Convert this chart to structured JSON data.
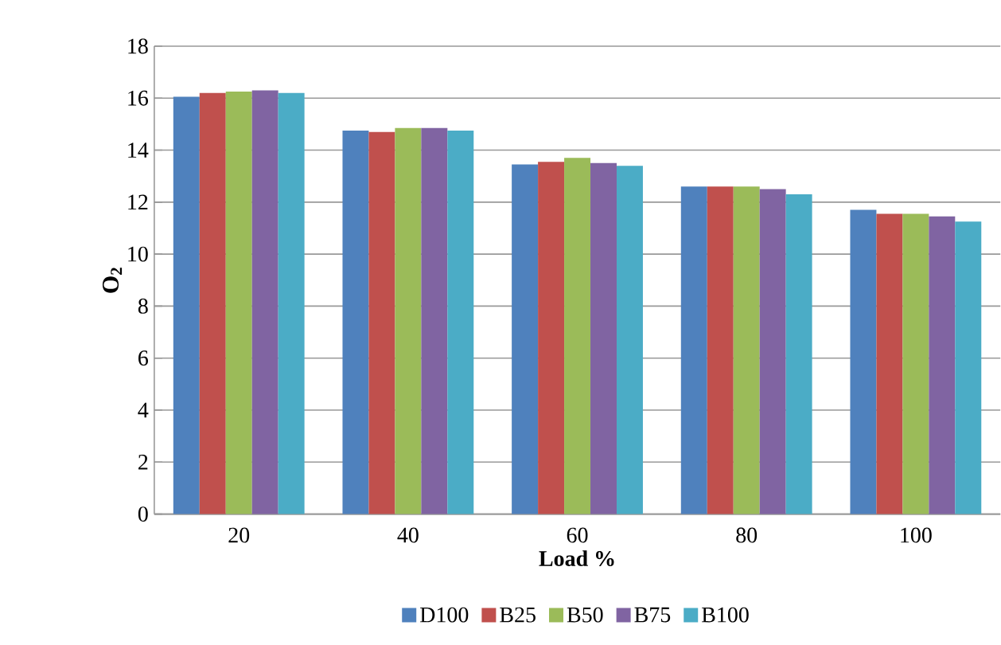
{
  "chart_data": {
    "type": "bar",
    "xlabel": "Load %",
    "ylabel": "O$_{2}$",
    "categories": [
      "20",
      "40",
      "60",
      "80",
      "100"
    ],
    "series": [
      {
        "name": "D100",
        "color": "#4f81bd",
        "values": [
          16.05,
          14.75,
          13.45,
          12.6,
          11.7
        ]
      },
      {
        "name": "B25",
        "color": "#c0504d",
        "values": [
          16.2,
          14.7,
          13.55,
          12.6,
          11.55
        ]
      },
      {
        "name": "B50",
        "color": "#9bbb59",
        "values": [
          16.25,
          14.85,
          13.7,
          12.6,
          11.55
        ]
      },
      {
        "name": "B75",
        "color": "#8064a2",
        "values": [
          16.3,
          14.85,
          13.5,
          12.5,
          11.45
        ]
      },
      {
        "name": "B100",
        "color": "#4bacc6",
        "values": [
          16.2,
          14.75,
          13.4,
          12.3,
          11.25
        ]
      }
    ],
    "ylim": [
      0,
      18
    ],
    "yticks": [
      0,
      2,
      4,
      6,
      8,
      10,
      12,
      14,
      16,
      18
    ],
    "grid": "y",
    "legend": "bottom"
  }
}
